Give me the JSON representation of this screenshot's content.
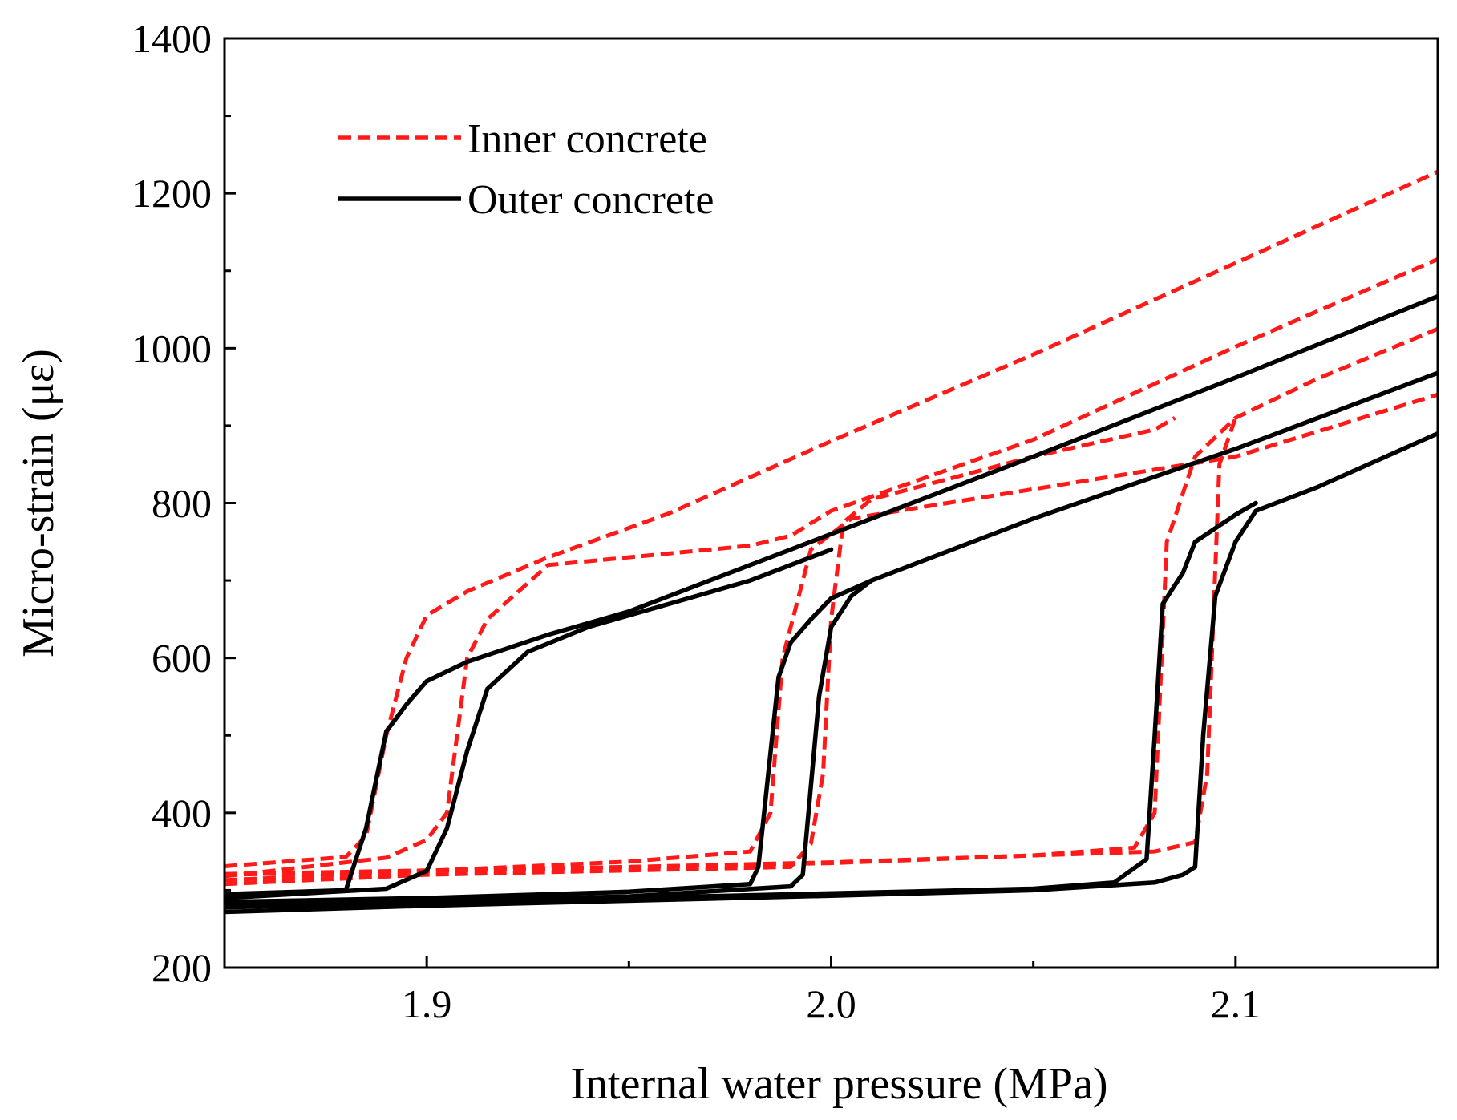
{
  "chart_data": {
    "type": "line",
    "title": "",
    "xlabel": "Internal water pressure (MPa)",
    "ylabel": "Micro-strain (με)",
    "xlim": [
      1.85,
      2.15
    ],
    "ylim": [
      200,
      1400
    ],
    "x_ticks": [
      {
        "value": 1.9,
        "label": "1.9"
      },
      {
        "value": 2.0,
        "label": "2.0"
      },
      {
        "value": 2.1,
        "label": "2.1"
      }
    ],
    "x_minor_ticks": [
      1.95,
      2.05
    ],
    "y_ticks": [
      {
        "value": 200,
        "label": "200"
      },
      {
        "value": 400,
        "label": "400"
      },
      {
        "value": 600,
        "label": "600"
      },
      {
        "value": 800,
        "label": "800"
      },
      {
        "value": 1000,
        "label": "1000"
      },
      {
        "value": 1200,
        "label": "1200"
      },
      {
        "value": 1400,
        "label": "1400"
      }
    ],
    "y_minor_ticks": [
      300,
      500,
      700,
      900,
      1100,
      1300
    ],
    "grid": false,
    "legend_position": "top-left",
    "legend": [
      {
        "name": "Inner concrete",
        "style": "dashed",
        "color": "#ff1a1a"
      },
      {
        "name": "Outer concrete",
        "style": "solid",
        "color": "#000000"
      }
    ],
    "series": [
      {
        "name": "Inner concrete",
        "group": "inner",
        "color": "#ff1a1a",
        "dashed": true,
        "points": [
          [
            1.85,
            331
          ],
          [
            1.88,
            343
          ],
          [
            1.885,
            370
          ],
          [
            1.89,
            500
          ],
          [
            1.895,
            600
          ],
          [
            1.9,
            655
          ],
          [
            1.91,
            686
          ],
          [
            1.93,
            730
          ],
          [
            1.96,
            787
          ],
          [
            2.0,
            880
          ],
          [
            2.05,
            992
          ],
          [
            2.1,
            1110
          ],
          [
            2.15,
            1228
          ]
        ]
      },
      {
        "name": "Inner concrete",
        "group": "inner",
        "color": "#ff1a1a",
        "dashed": true,
        "points": [
          [
            1.85,
            318
          ],
          [
            1.89,
            342
          ],
          [
            1.9,
            365
          ],
          [
            1.905,
            400
          ],
          [
            1.91,
            600
          ],
          [
            1.915,
            650
          ],
          [
            1.93,
            720
          ],
          [
            1.98,
            745
          ],
          [
            1.99,
            758
          ],
          [
            2.0,
            790
          ],
          [
            2.05,
            882
          ],
          [
            2.1,
            1002
          ],
          [
            2.15,
            1115
          ]
        ]
      },
      {
        "name": "Inner concrete",
        "group": "inner",
        "color": "#ff1a1a",
        "dashed": true,
        "points": [
          [
            1.85,
            313
          ],
          [
            1.9,
            325
          ],
          [
            1.95,
            337
          ],
          [
            1.98,
            350
          ],
          [
            1.985,
            400
          ],
          [
            1.988,
            600
          ],
          [
            1.995,
            740
          ],
          [
            2.005,
            780
          ],
          [
            2.1,
            860
          ],
          [
            2.15,
            940
          ]
        ]
      },
      {
        "name": "Inner concrete",
        "group": "inner",
        "color": "#ff1a1a",
        "dashed": true,
        "points": [
          [
            1.85,
            308
          ],
          [
            1.9,
            320
          ],
          [
            1.99,
            330
          ],
          [
            1.995,
            360
          ],
          [
            1.998,
            450
          ],
          [
            2.0,
            650
          ],
          [
            2.003,
            775
          ],
          [
            2.01,
            805
          ],
          [
            2.05,
            860
          ],
          [
            2.08,
            895
          ],
          [
            2.085,
            910
          ]
        ]
      },
      {
        "name": "Inner concrete",
        "group": "inner",
        "color": "#ff1a1a",
        "dashed": true,
        "points": [
          [
            1.85,
            320
          ],
          [
            1.9,
            325
          ],
          [
            2.0,
            335
          ],
          [
            2.05,
            345
          ],
          [
            2.075,
            355
          ],
          [
            2.08,
            400
          ],
          [
            2.083,
            750
          ],
          [
            2.09,
            860
          ],
          [
            2.1,
            910
          ],
          [
            2.12,
            960
          ],
          [
            2.15,
            1025
          ]
        ]
      },
      {
        "name": "Inner concrete",
        "group": "inner",
        "color": "#ff1a1a",
        "dashed": true,
        "points": [
          [
            1.85,
            321
          ],
          [
            1.95,
            330
          ],
          [
            2.0,
            336
          ],
          [
            2.05,
            345
          ],
          [
            2.08,
            350
          ],
          [
            2.09,
            362
          ],
          [
            2.093,
            450
          ],
          [
            2.096,
            850
          ],
          [
            2.1,
            910
          ]
        ]
      },
      {
        "name": "Outer concrete",
        "group": "outer",
        "color": "#000000",
        "dashed": false,
        "points": [
          [
            1.85,
            295
          ],
          [
            1.88,
            300
          ],
          [
            1.885,
            380
          ],
          [
            1.89,
            505
          ],
          [
            1.895,
            540
          ],
          [
            1.9,
            570
          ],
          [
            1.91,
            595
          ],
          [
            1.93,
            630
          ],
          [
            1.95,
            660
          ],
          [
            2.0,
            760
          ],
          [
            2.05,
            860
          ],
          [
            2.1,
            962
          ],
          [
            2.15,
            1067
          ]
        ]
      },
      {
        "name": "Outer concrete",
        "group": "outer",
        "color": "#000000",
        "dashed": false,
        "points": [
          [
            1.85,
            290
          ],
          [
            1.89,
            302
          ],
          [
            1.9,
            325
          ],
          [
            1.905,
            380
          ],
          [
            1.91,
            480
          ],
          [
            1.915,
            560
          ],
          [
            1.925,
            608
          ],
          [
            1.94,
            640
          ],
          [
            1.96,
            670
          ],
          [
            1.98,
            700
          ],
          [
            2.0,
            740
          ]
        ]
      },
      {
        "name": "Outer concrete",
        "group": "outer",
        "color": "#000000",
        "dashed": false,
        "points": [
          [
            1.85,
            285
          ],
          [
            1.9,
            290
          ],
          [
            1.95,
            298
          ],
          [
            1.98,
            308
          ],
          [
            1.982,
            330
          ],
          [
            1.987,
            575
          ],
          [
            1.99,
            620
          ],
          [
            1.995,
            650
          ],
          [
            2.0,
            677
          ],
          [
            2.01,
            700
          ],
          [
            2.05,
            780
          ],
          [
            2.1,
            870
          ],
          [
            2.15,
            968
          ]
        ]
      },
      {
        "name": "Outer concrete",
        "group": "outer",
        "color": "#000000",
        "dashed": false,
        "points": [
          [
            1.85,
            280
          ],
          [
            1.95,
            292
          ],
          [
            1.99,
            305
          ],
          [
            1.993,
            320
          ],
          [
            1.997,
            550
          ],
          [
            2.0,
            640
          ],
          [
            2.005,
            680
          ],
          [
            2.01,
            700
          ]
        ]
      },
      {
        "name": "Outer concrete",
        "group": "outer",
        "color": "#000000",
        "dashed": false,
        "points": [
          [
            1.85,
            278
          ],
          [
            1.95,
            290
          ],
          [
            2.05,
            302
          ],
          [
            2.07,
            310
          ],
          [
            2.078,
            340
          ],
          [
            2.08,
            500
          ],
          [
            2.082,
            670
          ],
          [
            2.087,
            710
          ],
          [
            2.09,
            750
          ],
          [
            2.1,
            785
          ],
          [
            2.105,
            800
          ]
        ]
      },
      {
        "name": "Outer concrete",
        "group": "outer",
        "color": "#000000",
        "dashed": false,
        "points": [
          [
            1.85,
            272
          ],
          [
            1.9,
            280
          ],
          [
            2.0,
            293
          ],
          [
            2.05,
            300
          ],
          [
            2.08,
            310
          ],
          [
            2.087,
            320
          ],
          [
            2.09,
            330
          ],
          [
            2.092,
            500
          ],
          [
            2.095,
            680
          ],
          [
            2.1,
            750
          ],
          [
            2.105,
            790
          ],
          [
            2.12,
            820
          ],
          [
            2.15,
            890
          ]
        ]
      }
    ]
  }
}
